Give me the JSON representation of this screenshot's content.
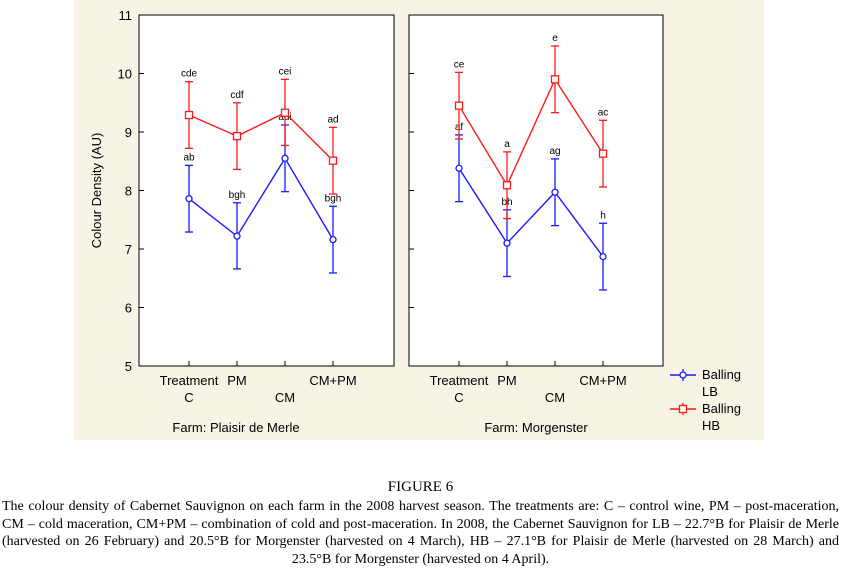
{
  "chart_data": {
    "type": "line",
    "ylabel": "Colour Density (AU)",
    "ylim": [
      5,
      11
    ],
    "yticks": [
      5,
      6,
      7,
      8,
      9,
      10,
      11
    ],
    "categories": [
      {
        "top": "Treatment",
        "bottom": "C"
      },
      {
        "top": "PM",
        "bottom": ""
      },
      {
        "top": "",
        "bottom": "CM"
      },
      {
        "top": "CM+PM",
        "bottom": ""
      }
    ],
    "legend": [
      {
        "name": "Balling",
        "name2": "LB",
        "color": "#1a1aff",
        "marker": "circle"
      },
      {
        "name": "Balling",
        "name2": "HB",
        "color": "#ff1a1a",
        "marker": "square"
      }
    ],
    "panels": [
      {
        "title": "Farm: Plaisir de Merle",
        "series": [
          {
            "name": "Balling LB",
            "color": "#1a1aff",
            "marker": "circle",
            "values": [
              7.86,
              7.22,
              8.55,
              7.16
            ],
            "lower": [
              7.29,
              6.66,
              7.98,
              6.59
            ],
            "upper": [
              8.43,
              7.79,
              9.12,
              7.73
            ],
            "labels": [
              "ab",
              "bgh",
              "adi",
              "bgh"
            ]
          },
          {
            "name": "Balling HB",
            "color": "#ff1a1a",
            "marker": "square",
            "values": [
              9.29,
              8.93,
              9.33,
              8.51
            ],
            "lower": [
              8.72,
              8.36,
              8.77,
              7.94
            ],
            "upper": [
              9.86,
              9.5,
              9.9,
              9.08
            ],
            "labels": [
              "cde",
              "cdf",
              "cei",
              "ad"
            ]
          }
        ]
      },
      {
        "title": "Farm: Morgenster",
        "series": [
          {
            "name": "Balling LB",
            "color": "#1a1aff",
            "marker": "circle",
            "values": [
              8.38,
              7.1,
              7.97,
              6.87
            ],
            "lower": [
              7.81,
              6.53,
              7.4,
              6.3
            ],
            "upper": [
              8.95,
              7.67,
              8.54,
              7.44
            ],
            "labels": [
              "af",
              "bh",
              "ag",
              "h"
            ]
          },
          {
            "name": "Balling HB",
            "color": "#ff1a1a",
            "marker": "square",
            "values": [
              9.45,
              8.09,
              9.9,
              8.63
            ],
            "lower": [
              8.88,
              7.52,
              9.33,
              8.06
            ],
            "upper": [
              10.02,
              8.66,
              10.47,
              9.2
            ],
            "labels": [
              "ce",
              "a",
              "e",
              "ac"
            ]
          }
        ]
      }
    ]
  },
  "caption": {
    "title": "FIGURE 6",
    "text": "The colour density of Cabernet Sauvignon on each farm in the 2008 harvest season. The treatments are: C – control wine, PM – post-maceration, CM – cold maceration, CM+PM – combination of cold and post-maceration. In 2008, the Cabernet Sauvignon for LB – 22.7°B for Plaisir de Merle (harvested on 26 February) and 20.5°B for Morgenster (harvested on 4 March), HB – 27.1°B for Plaisir de Merle (harvested on 28 March) and 23.5°B for Morgenster (harvested on 4 April)."
  }
}
